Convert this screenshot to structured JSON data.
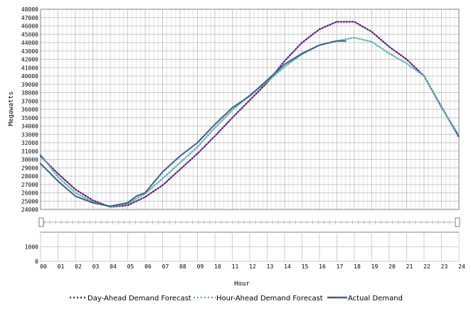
{
  "chart_data": {
    "type": "line",
    "xlabel": "Hour",
    "ylabel": "Megawatts",
    "ylim": [
      24000,
      48000
    ],
    "xlim": [
      0,
      24
    ],
    "grid": true,
    "y_ticks": [
      "24000",
      "25000",
      "26000",
      "27000",
      "28000",
      "29000",
      "30000",
      "31000",
      "32000",
      "33000",
      "34000",
      "35000",
      "36000",
      "37000",
      "38000",
      "39000",
      "40000",
      "41000",
      "42000",
      "43000",
      "44000",
      "45000",
      "46000",
      "47000",
      "48000"
    ],
    "x_ticks": [
      "00",
      "01",
      "02",
      "03",
      "04",
      "05",
      "06",
      "07",
      "08",
      "09",
      "10",
      "11",
      "12",
      "13",
      "14",
      "15",
      "16",
      "17",
      "18",
      "19",
      "20",
      "21",
      "22",
      "23",
      "24"
    ],
    "lower_panel_y_ticks": [
      "0",
      "1000"
    ],
    "lower_panel_ylim": [
      0,
      2000
    ],
    "legend_position": "bottom",
    "series": [
      {
        "name": "Day-Ahead Demand Forecast",
        "color": "#5b1f6e",
        "style": "dotted",
        "x": [
          0,
          1,
          2,
          3,
          4,
          5,
          6,
          7,
          8,
          9,
          10,
          11,
          12,
          13,
          14,
          15,
          16,
          17,
          18,
          19,
          20,
          21,
          22,
          23,
          24
        ],
        "values": [
          30400,
          28300,
          26400,
          25100,
          24300,
          24500,
          25500,
          26900,
          28800,
          30700,
          32800,
          35000,
          37100,
          39200,
          41800,
          44000,
          45600,
          46500,
          46500,
          45300,
          43500,
          42000,
          40000,
          36300,
          32700
        ]
      },
      {
        "name": "Hour-Ahead Demand Forecast",
        "color": "#5fb3b0",
        "style": "dotted",
        "x": [
          0,
          1,
          2,
          3,
          4,
          5,
          6,
          7,
          8,
          9,
          10,
          11,
          12,
          13,
          14,
          15,
          16,
          17,
          18,
          19,
          20,
          21,
          22,
          23,
          24
        ],
        "values": [
          30600,
          27900,
          26000,
          24900,
          24300,
          24700,
          25900,
          27700,
          29600,
          31500,
          33800,
          35900,
          37700,
          39300,
          41100,
          42600,
          43700,
          44200,
          44600,
          44100,
          42700,
          41500,
          40000,
          36200,
          32900
        ]
      },
      {
        "name": "Actual Demand",
        "color": "#3d5f82",
        "style": "solid",
        "x": [
          0,
          1,
          2,
          3,
          4,
          5,
          5.5,
          6,
          7,
          8,
          9,
          10,
          11,
          12,
          13,
          14,
          15,
          16,
          17,
          17.5
        ],
        "values": [
          29500,
          27400,
          25600,
          24800,
          24400,
          24800,
          25600,
          26000,
          28500,
          30400,
          32000,
          34200,
          36200,
          37600,
          39500,
          41400,
          42700,
          43700,
          44200,
          44200
        ]
      }
    ]
  }
}
